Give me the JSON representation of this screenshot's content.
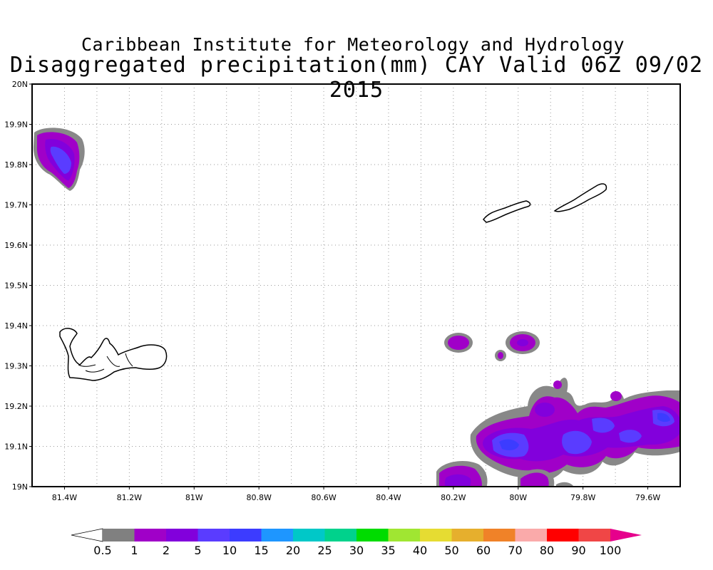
{
  "header": {
    "title": "Caribbean Institute for Meteorology and Hydrology",
    "subtitle": "Disaggregated precipitation(mm) CAY Valid 06Z 09/02 2015"
  },
  "map": {
    "lat_labels": [
      "20N",
      "19.9N",
      "19.8N",
      "19.7N",
      "19.6N",
      "19.5N",
      "19.4N",
      "19.3N",
      "19.2N",
      "19.1N",
      "19N"
    ],
    "lon_labels": [
      "81.4W",
      "81.2W",
      "81W",
      "80.8W",
      "80.6W",
      "80.4W",
      "80.2W",
      "80W",
      "79.8W",
      "79.6W"
    ],
    "lat_range": [
      19.0,
      20.0
    ],
    "lon_range": [
      -81.5,
      -79.5
    ],
    "grid": true
  },
  "colorbar": {
    "labels": [
      "0.5",
      "1",
      "2",
      "5",
      "10",
      "15",
      "20",
      "25",
      "30",
      "35",
      "40",
      "50",
      "60",
      "70",
      "80",
      "90",
      "100"
    ],
    "colors": [
      "#ffffff",
      "#808080",
      "#a000c8",
      "#8200dc",
      "#5a3cff",
      "#3c3cff",
      "#1e96ff",
      "#00c8c8",
      "#00d28c",
      "#00dc00",
      "#a0e632",
      "#e6dc32",
      "#e6af2d",
      "#f08228",
      "#faaaaa",
      "#ff0000",
      "#f04646",
      "#e6008c"
    ]
  }
}
